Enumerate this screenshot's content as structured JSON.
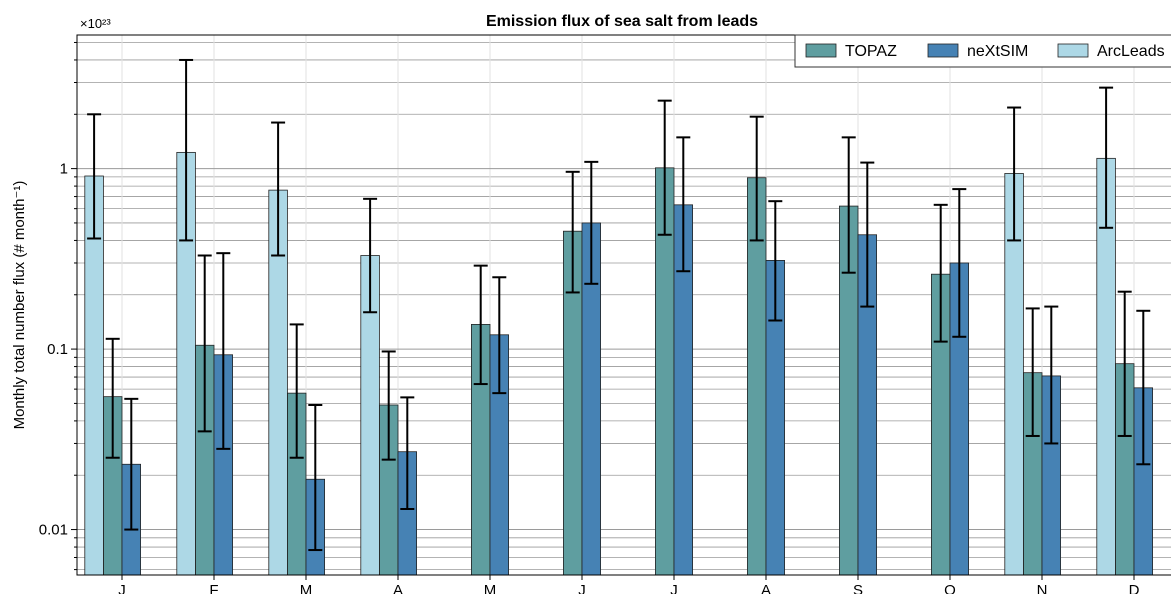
{
  "chart_data": {
    "type": "bar",
    "title": "Emission flux of sea salt from leads",
    "y_label": "Monthly total number flux (# month⁻¹)",
    "y_scale_label": "×10²³",
    "yscale": "log",
    "grid": true,
    "legend": "upper right",
    "categories": [
      "J",
      "F",
      "M",
      "A",
      "M",
      "J",
      "J",
      "A",
      "S",
      "O",
      "N",
      "D"
    ],
    "ylim": [
      0.0056,
      5.5
    ],
    "yticks": [
      0.01,
      0.1,
      1
    ],
    "yminorticks": [
      0.006,
      0.007,
      0.008,
      0.009,
      0.02,
      0.03,
      0.04,
      0.05,
      0.06,
      0.07,
      0.08,
      0.09,
      0.2,
      0.3,
      0.4,
      0.5,
      0.6,
      0.7,
      0.8,
      0.9,
      2,
      3,
      4,
      5
    ],
    "series": [
      {
        "name": "TOPAZ",
        "color": "#5f9ea0",
        "values": [
          0.0545,
          0.105,
          0.057,
          0.049,
          0.137,
          0.45,
          1.01,
          0.89,
          0.62,
          0.26,
          0.074,
          0.083
        ],
        "lower": [
          0.025,
          0.035,
          0.025,
          0.0244,
          0.064,
          0.206,
          0.43,
          0.4,
          0.265,
          0.11,
          0.033,
          0.033
        ],
        "upper": [
          0.114,
          0.33,
          0.137,
          0.097,
          0.29,
          0.96,
          2.38,
          1.94,
          1.49,
          0.63,
          0.168,
          0.208
        ]
      },
      {
        "name": "neXtSIM",
        "color": "#4682b4",
        "values": [
          0.023,
          0.093,
          0.019,
          0.027,
          0.12,
          0.5,
          0.63,
          0.31,
          0.43,
          0.3,
          0.071,
          0.061
        ],
        "lower": [
          0.01,
          0.028,
          0.0077,
          0.013,
          0.057,
          0.23,
          0.27,
          0.144,
          0.172,
          0.117,
          0.03,
          0.023
        ],
        "upper": [
          0.053,
          0.34,
          0.049,
          0.054,
          0.25,
          1.09,
          1.49,
          0.66,
          1.08,
          0.77,
          0.172,
          0.163
        ]
      },
      {
        "name": "ArcLeads",
        "color": "#add8e6",
        "values": [
          0.91,
          1.23,
          0.76,
          0.33,
          null,
          null,
          null,
          null,
          null,
          null,
          0.94,
          1.14
        ],
        "lower": [
          0.41,
          0.4,
          0.33,
          0.16,
          null,
          null,
          null,
          null,
          null,
          null,
          0.4,
          0.47
        ],
        "upper": [
          2.0,
          4.0,
          1.8,
          0.68,
          null,
          null,
          null,
          null,
          null,
          null,
          2.18,
          2.81
        ]
      }
    ]
  }
}
